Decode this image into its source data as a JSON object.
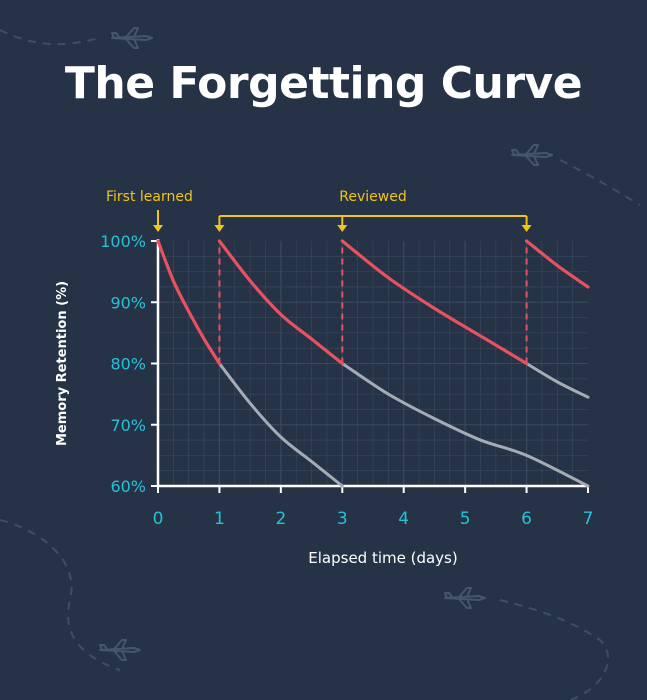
{
  "title": "The Forgetting Curve",
  "chart_data": {
    "type": "line",
    "title": "The Forgetting Curve",
    "xlabel": "Elapsed time (days)",
    "ylabel": "Memory Retention (%)",
    "xlim": [
      0,
      7
    ],
    "ylim": [
      60,
      100
    ],
    "x_ticks": [
      "0",
      "1",
      "2",
      "3",
      "4",
      "5",
      "6",
      "7"
    ],
    "y_ticks": [
      "60%",
      "70%",
      "80%",
      "90%",
      "100%"
    ],
    "grid": true,
    "annotations": {
      "first_learned": {
        "label": "First learned",
        "x": 0
      },
      "reviewed": {
        "label": "Reviewed",
        "x": [
          1,
          3,
          6
        ]
      }
    },
    "series": [
      {
        "role": "retention-with-reviews",
        "color": "#e8525f",
        "segments": [
          {
            "x": [
              0,
              0.25,
              0.5,
              0.75,
              1
            ],
            "y": [
              100,
              93.5,
              88.5,
              84,
              80
            ]
          },
          {
            "x": [
              1,
              1.5,
              2,
              2.5,
              3
            ],
            "y": [
              100,
              93.5,
              88,
              84,
              80
            ]
          },
          {
            "x": [
              3,
              3.75,
              4.5,
              5.25,
              6
            ],
            "y": [
              100,
              94,
              89,
              84.5,
              80
            ]
          },
          {
            "x": [
              6,
              6.5,
              7
            ],
            "y": [
              100,
              96,
              92.5
            ]
          }
        ]
      },
      {
        "role": "decay-without-review",
        "color": "#a7abb6",
        "segments": [
          {
            "x": [
              1,
              1.5,
              2,
              2.5,
              3
            ],
            "y": [
              80,
              73.5,
              68,
              64,
              60
            ]
          },
          {
            "x": [
              3,
              3.75,
              4.5,
              5.25,
              6,
              7
            ],
            "y": [
              80,
              75,
              71,
              67.5,
              65,
              60
            ]
          },
          {
            "x": [
              6,
              6.5,
              7
            ],
            "y": [
              80,
              77,
              74.5
            ]
          }
        ]
      }
    ],
    "colors": {
      "background": "#263347",
      "axis": "#ffffff",
      "tick_label": "#28c0d8",
      "annotation": "#f0c419",
      "grid": "#3b4a60"
    }
  }
}
